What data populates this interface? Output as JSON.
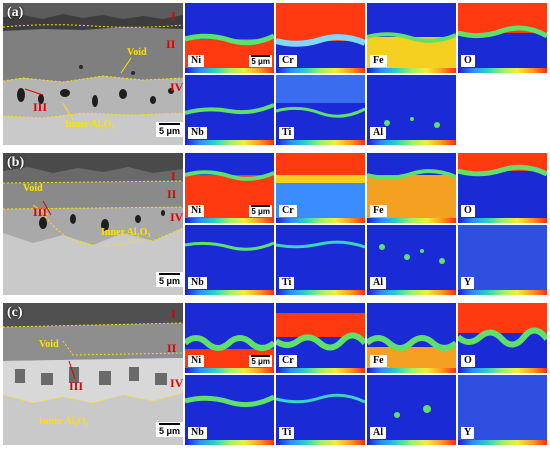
{
  "figure": {
    "panels": [
      {
        "id": "a",
        "letter": "(a)",
        "zones": [
          "I",
          "II",
          "III",
          "IV"
        ],
        "labels": {
          "void": "Void",
          "inner": "Inner Al₂O₃"
        },
        "scale": "5 μm",
        "maps": [
          "Ni",
          "Cr",
          "Fe",
          "O",
          "Nb",
          "Ti",
          "Al"
        ],
        "map_scale": "5 μm"
      },
      {
        "id": "b",
        "letter": "(b)",
        "zones": [
          "I",
          "II",
          "III",
          "IV"
        ],
        "labels": {
          "void": "Void",
          "inner": "Inner Al₂O₃"
        },
        "scale": "5 μm",
        "maps": [
          "Ni",
          "Cr",
          "Fe",
          "O",
          "Nb",
          "Ti",
          "Al",
          "Y"
        ],
        "map_scale": "5 μm"
      },
      {
        "id": "c",
        "letter": "(c)",
        "zones": [
          "I",
          "II",
          "III",
          "IV"
        ],
        "labels": {
          "void": "Void",
          "inner": "Inner Al₂O₃"
        },
        "scale": "5 μm",
        "maps": [
          "Ni",
          "Cr",
          "Fe",
          "O",
          "Nb",
          "Ti",
          "Al",
          "Y"
        ],
        "map_scale": "5 μm"
      }
    ]
  }
}
